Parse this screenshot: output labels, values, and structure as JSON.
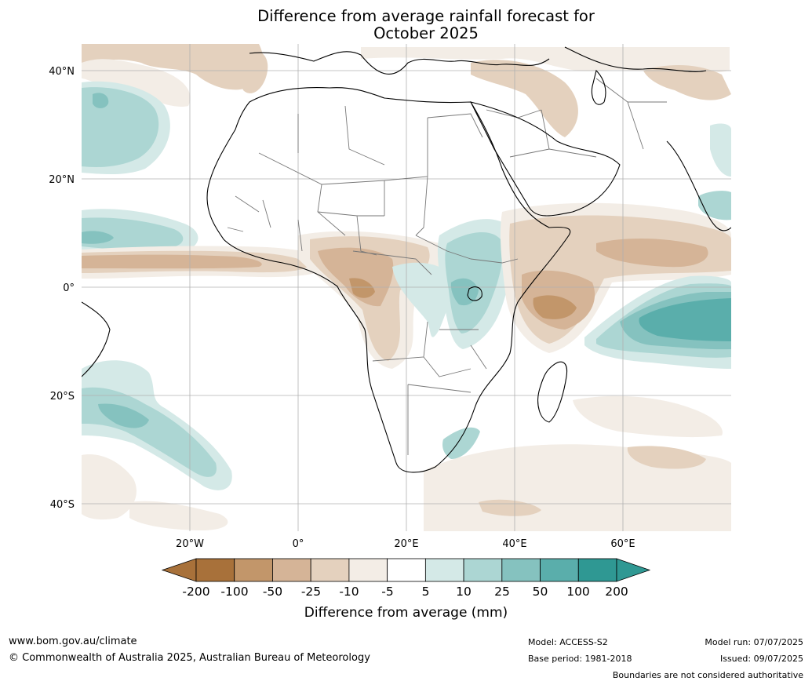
{
  "title": {
    "line1": "Difference from average rainfall forecast for",
    "line2": "October 2025"
  },
  "map": {
    "lat_labels": [
      "40°N",
      "20°N",
      "0°",
      "20°S",
      "40°S"
    ],
    "lon_labels": [
      "20°W",
      "0°",
      "20°E",
      "40°E",
      "60°E"
    ],
    "extent": {
      "lon_min": -40,
      "lon_max": 80,
      "lat_min": -45,
      "lat_max": 45
    }
  },
  "colorbar": {
    "title": "Difference from average (mm)",
    "tick_labels": [
      "-200",
      "-100",
      "-50",
      "-25",
      "-10",
      "-5",
      "5",
      "10",
      "25",
      "50",
      "100",
      "200"
    ],
    "colors": [
      "#a8713a",
      "#c2966a",
      "#d5b497",
      "#e4d1be",
      "#f3ede6",
      "#ffffff",
      "#d4e9e7",
      "#acd6d3",
      "#85c2bf",
      "#5aaeab",
      "#2f9893"
    ],
    "low_arrow_color": "#a8713a",
    "high_arrow_color": "#2f9893"
  },
  "footer": {
    "website": "www.bom.gov.au/climate",
    "copyright": "© Commonwealth of Australia 2025, Australian Bureau of Meteorology",
    "model": "Model: ACCESS-S2",
    "base_period": "Base period: 1981-2018",
    "model_run": "Model run: 07/07/2025",
    "issued": "Issued: 09/07/2025",
    "disclaimer": "Boundaries are not considered authoritative"
  }
}
